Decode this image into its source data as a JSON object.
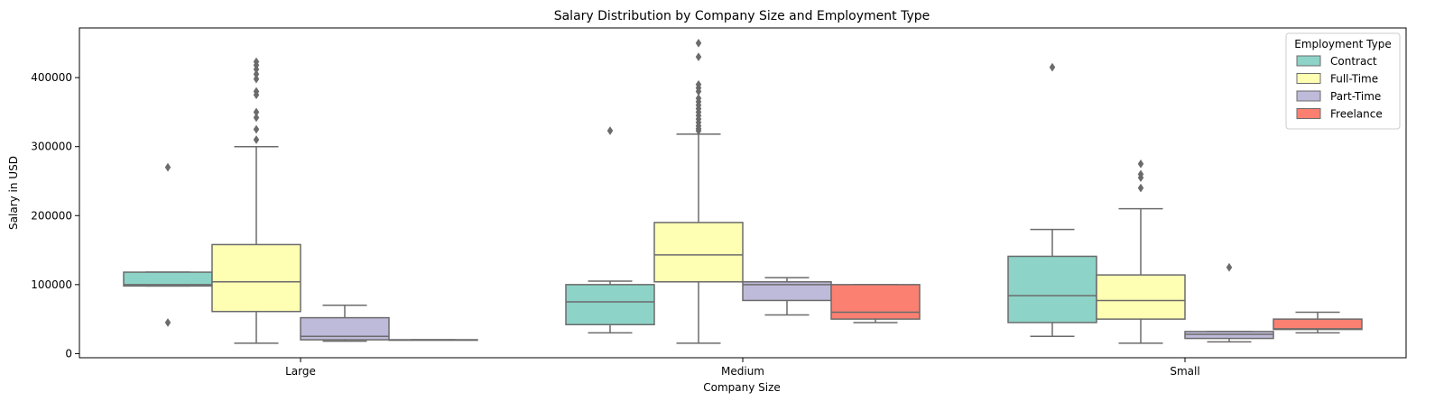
{
  "chart_data": {
    "type": "boxplot",
    "title": "Salary Distribution by Company Size and Employment Type",
    "xlabel": "Company Size",
    "ylabel": "Salary in USD",
    "ylim": [
      -6000,
      472000
    ],
    "yticks": [
      0,
      100000,
      200000,
      300000,
      400000
    ],
    "ytick_labels": [
      "0",
      "100000",
      "200000",
      "300000",
      "400000"
    ],
    "categories": [
      "Large",
      "Medium",
      "Small"
    ],
    "legend": {
      "title": "Employment Type",
      "placement": "top-right",
      "entries": [
        "Contract",
        "Full-Time",
        "Part-Time",
        "Freelance"
      ]
    },
    "colors": {
      "Contract": "#8dd3c7",
      "Full-Time": "#ffffb3",
      "Part-Time": "#bebada",
      "Freelance": "#fb8072",
      "line": "#6b6b6b"
    },
    "series": [
      {
        "name": "Contract",
        "boxes": [
          {
            "category": "Large",
            "low": 98000,
            "q1": 98000,
            "median": 100000,
            "q3": 118000,
            "high": 118000,
            "outliers": [
              270000,
              45000
            ]
          },
          {
            "category": "Medium",
            "low": 30000,
            "q1": 42000,
            "median": 75000,
            "q3": 100000,
            "high": 105000,
            "outliers": [
              323000
            ]
          },
          {
            "category": "Small",
            "low": 25000,
            "q1": 45000,
            "median": 84000,
            "q3": 141000,
            "high": 180000,
            "outliers": [
              415000
            ]
          }
        ]
      },
      {
        "name": "Full-Time",
        "boxes": [
          {
            "category": "Large",
            "low": 15000,
            "q1": 61000,
            "median": 104000,
            "q3": 158000,
            "high": 300000,
            "outliers": [
              310000,
              325000,
              342000,
              350000,
              375000,
              380000,
              398000,
              405000,
              412000,
              418000,
              423000
            ]
          },
          {
            "category": "Medium",
            "low": 15000,
            "q1": 104000,
            "median": 143000,
            "q3": 190000,
            "high": 318000,
            "outliers": [
              323000,
              326000,
              330000,
              335000,
              340000,
              345000,
              350000,
              355000,
              360000,
              365000,
              370000,
              380000,
              385000,
              390000,
              430000,
              450000
            ]
          },
          {
            "category": "Small",
            "low": 15000,
            "q1": 50000,
            "median": 77000,
            "q3": 114000,
            "high": 210000,
            "outliers": [
              240000,
              255000,
              260000,
              275000
            ]
          }
        ]
      },
      {
        "name": "Part-Time",
        "boxes": [
          {
            "category": "Large",
            "low": 18000,
            "q1": 20000,
            "median": 25000,
            "q3": 52000,
            "high": 70000,
            "outliers": []
          },
          {
            "category": "Medium",
            "low": 56000,
            "q1": 77000,
            "median": 100000,
            "q3": 104000,
            "high": 110000,
            "outliers": []
          },
          {
            "category": "Small",
            "low": 17000,
            "q1": 22000,
            "median": 28000,
            "q3": 32000,
            "high": 32000,
            "outliers": [
              125000
            ]
          }
        ]
      },
      {
        "name": "Freelance",
        "boxes": [
          {
            "category": "Large",
            "low": 20000,
            "q1": 20000,
            "median": 20000,
            "q3": 20000,
            "high": 20000,
            "outliers": []
          },
          {
            "category": "Medium",
            "low": 45000,
            "q1": 50000,
            "median": 60000,
            "q3": 100000,
            "high": 100000,
            "outliers": []
          },
          {
            "category": "Small",
            "low": 30000,
            "q1": 35000,
            "median": 36000,
            "q3": 50000,
            "high": 60000,
            "outliers": []
          }
        ]
      }
    ]
  }
}
